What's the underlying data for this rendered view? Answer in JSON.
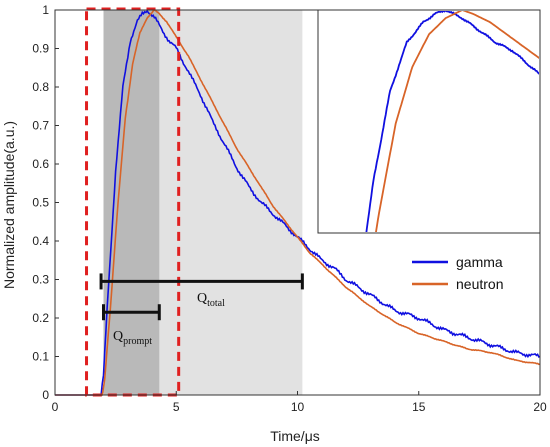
{
  "chart_data": {
    "type": "line",
    "xlabel": "Time/μs",
    "ylabel": "Normalized amplitude(a.u.)",
    "xlim": [
      0,
      20
    ],
    "ylim": [
      0,
      1
    ],
    "x_ticks": [
      "0",
      "5",
      "10",
      "15",
      "20"
    ],
    "y_ticks": [
      "0",
      "0.1",
      "0.2",
      "0.3",
      "0.4",
      "0.5",
      "0.6",
      "0.7",
      "0.8",
      "0.9",
      "1"
    ],
    "grid": false,
    "legend_position": "right",
    "series": [
      {
        "name": "gamma",
        "color": "#1010e0",
        "x": [
          0,
          1.9,
          2.0,
          2.2,
          2.5,
          2.8,
          3.1,
          3.4,
          3.6,
          3.8,
          4.1,
          4.4,
          4.7,
          5.0,
          5.5,
          6.0,
          6.5,
          7.0,
          7.5,
          8.0,
          8.5,
          9.0,
          9.5,
          10.0,
          10.5,
          11.0,
          11.5,
          12.0,
          13.0,
          14.0,
          15.0,
          16.0,
          17.0,
          18.0,
          19.0,
          20.0
        ],
        "y": [
          0,
          0,
          0.05,
          0.28,
          0.58,
          0.8,
          0.92,
          0.97,
          0.99,
          1.0,
          0.98,
          0.95,
          0.92,
          0.9,
          0.84,
          0.78,
          0.71,
          0.65,
          0.59,
          0.54,
          0.5,
          0.47,
          0.44,
          0.41,
          0.38,
          0.35,
          0.33,
          0.3,
          0.26,
          0.22,
          0.2,
          0.17,
          0.15,
          0.13,
          0.11,
          0.1
        ]
      },
      {
        "name": "neutron",
        "color": "#d86428",
        "x": [
          0,
          1.95,
          2.05,
          2.3,
          2.6,
          2.9,
          3.2,
          3.5,
          3.8,
          4.1,
          4.3,
          4.6,
          5.0,
          5.5,
          6.0,
          6.5,
          7.0,
          7.5,
          8.0,
          8.5,
          9.0,
          9.5,
          10.0,
          10.5,
          11.0,
          11.5,
          12.0,
          13.0,
          14.0,
          15.0,
          16.0,
          17.0,
          18.0,
          19.0,
          20.0
        ],
        "y": [
          0,
          0,
          0.04,
          0.24,
          0.5,
          0.72,
          0.86,
          0.94,
          0.98,
          1.0,
          0.99,
          0.97,
          0.93,
          0.88,
          0.82,
          0.76,
          0.7,
          0.64,
          0.59,
          0.54,
          0.49,
          0.45,
          0.41,
          0.37,
          0.34,
          0.31,
          0.28,
          0.23,
          0.19,
          0.16,
          0.14,
          0.12,
          0.11,
          0.09,
          0.08
        ]
      }
    ],
    "shaded_regions": [
      {
        "x_start": 2.0,
        "x_end": 10.2,
        "color": "#e2e2e2"
      },
      {
        "x_start": 2.0,
        "x_end": 4.3,
        "color": "#b9b9b9"
      }
    ],
    "highlight_box": {
      "x_start": 1.3,
      "x_end": 5.1,
      "y_start": 0,
      "y_end": 1,
      "color": "#e02020"
    },
    "annotations": {
      "q_total": {
        "main": "Q",
        "sub": "total",
        "x_start": 1.9,
        "x_end": 10.2,
        "y": 0.295
      },
      "q_prompt": {
        "main": "Q",
        "sub": "prompt",
        "x_start": 2.0,
        "x_end": 4.3,
        "y": 0.215
      }
    },
    "inset": {
      "x_range": [
        1.5,
        5.5
      ],
      "y_range": [
        0.45,
        1.0
      ]
    }
  }
}
